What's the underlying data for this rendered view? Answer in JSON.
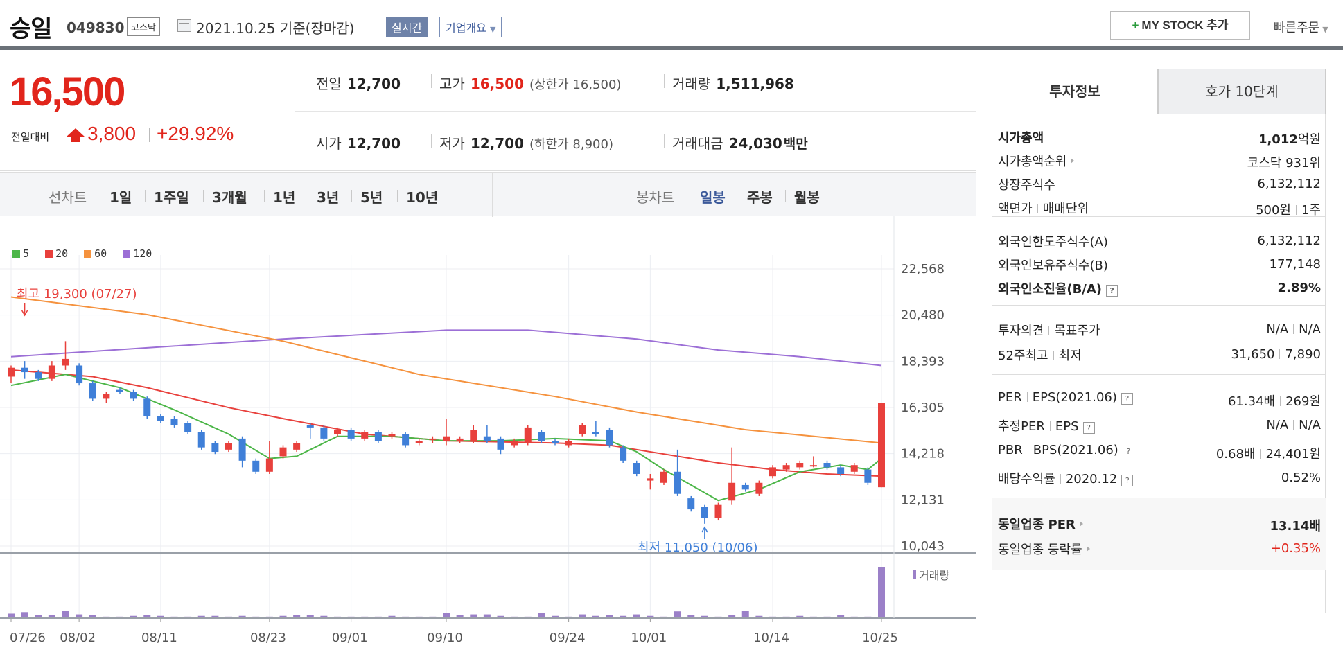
{
  "header": {
    "stock_name": "승일",
    "stock_code": "049830",
    "market": "코스닥",
    "date_text": "2021.10.25 기준(장마감)",
    "realtime_label": "실시간",
    "company_label": "기업개요",
    "mystock_label": "MY STOCK 추가",
    "quick_order_label": "빠른주문"
  },
  "price": {
    "current": "16,500",
    "compare_label": "전일대비",
    "diff": "3,800",
    "pct": "+29.92%",
    "color_up": "#e1251b"
  },
  "stats": {
    "prev_label": "전일",
    "prev": "12,700",
    "high_label": "고가",
    "high": "16,500",
    "upper_limit": "(상한가 16,500)",
    "volume_label": "거래량",
    "volume": "1,511,968",
    "open_label": "시가",
    "open": "12,700",
    "low_label": "저가",
    "low": "12,700",
    "lower_limit": "(하한가 8,900)",
    "amount_label": "거래대금",
    "amount": "24,030",
    "amount_unit": "백만"
  },
  "tabs": {
    "line_label": "선차트",
    "line_periods": [
      "1일",
      "1주일",
      "3개월",
      "1년",
      "3년",
      "5년",
      "10년"
    ],
    "candle_label": "봉차트",
    "candle_periods": [
      "일봉",
      "주봉",
      "월봉"
    ],
    "candle_selected": "일봉"
  },
  "chart_data": {
    "type": "candlestick",
    "legend": [
      {
        "name": "5",
        "color": "#4cb648"
      },
      {
        "name": "20",
        "color": "#e8403c"
      },
      {
        "name": "60",
        "color": "#f5923e"
      },
      {
        "name": "120",
        "color": "#9c6fd6"
      }
    ],
    "y_ticks": [
      "22,568",
      "20,480",
      "18,393",
      "16,305",
      "14,218",
      "12,131",
      "10,043"
    ],
    "ylim": [
      10043,
      22568
    ],
    "x_ticks": [
      "07/26",
      "08/02",
      "08/11",
      "08/23",
      "09/01",
      "09/10",
      "09/24",
      "10/01",
      "10/14",
      "10/25"
    ],
    "high_annotation": "최고 19,300 (07/27)",
    "low_annotation": "최저 11,050 (10/06)",
    "volume_label": "거래량",
    "candles": [
      [
        17700,
        18100,
        17400,
        18200
      ],
      [
        18100,
        17900,
        17600,
        18400
      ],
      [
        17900,
        17600,
        17500,
        18000
      ],
      [
        17600,
        18200,
        17500,
        18400
      ],
      [
        18200,
        18500,
        18000,
        19300
      ],
      [
        18200,
        17400,
        17300,
        18300
      ],
      [
        17400,
        16700,
        16600,
        17500
      ],
      [
        16700,
        16900,
        16500,
        17000
      ],
      [
        17100,
        17000,
        16900,
        17200
      ],
      [
        17000,
        16700,
        16600,
        17100
      ],
      [
        16700,
        15900,
        15800,
        16800
      ],
      [
        15900,
        15700,
        15600,
        16000
      ],
      [
        15800,
        15500,
        15400,
        15900
      ],
      [
        15600,
        15200,
        15100,
        15700
      ],
      [
        15200,
        14500,
        14400,
        15300
      ],
      [
        14700,
        14300,
        14200,
        14800
      ],
      [
        14400,
        14700,
        14300,
        14800
      ],
      [
        14900,
        13900,
        13600,
        15000
      ],
      [
        13900,
        13400,
        13300,
        14000
      ],
      [
        13400,
        14000,
        13300,
        14800
      ],
      [
        14100,
        14500,
        14000,
        14600
      ],
      [
        14400,
        14700,
        14300,
        14800
      ],
      [
        15500,
        15400,
        14900,
        15600
      ],
      [
        15400,
        14900,
        14800,
        15500
      ],
      [
        15100,
        15300,
        15000,
        15400
      ],
      [
        15300,
        14900,
        14800,
        15400
      ],
      [
        14900,
        15200,
        14800,
        15300
      ],
      [
        15200,
        14800,
        14700,
        15300
      ],
      [
        15000,
        15100,
        14900,
        15200
      ],
      [
        15100,
        14600,
        14500,
        15200
      ],
      [
        14700,
        14800,
        14600,
        14900
      ],
      [
        14900,
        14900,
        14700,
        15000
      ],
      [
        14800,
        15000,
        14600,
        15800
      ],
      [
        14800,
        14900,
        14700,
        15000
      ],
      [
        14800,
        15300,
        14700,
        15500
      ],
      [
        15000,
        14800,
        14700,
        15500
      ],
      [
        14900,
        14400,
        14200,
        15000
      ],
      [
        14600,
        14800,
        14500,
        14900
      ],
      [
        14700,
        15400,
        14600,
        15500
      ],
      [
        15200,
        14800,
        14700,
        15300
      ],
      [
        14800,
        14700,
        14600,
        14900
      ],
      [
        14600,
        14800,
        14500,
        14900
      ],
      [
        15100,
        15500,
        15000,
        15600
      ],
      [
        15200,
        15100,
        15000,
        15700
      ],
      [
        15300,
        14600,
        14500,
        15400
      ],
      [
        14500,
        13900,
        13800,
        14600
      ],
      [
        13800,
        13300,
        13200,
        13900
      ],
      [
        13000,
        13100,
        12600,
        13300
      ],
      [
        12900,
        13400,
        12800,
        13500
      ],
      [
        13400,
        12400,
        12300,
        14400
      ],
      [
        12200,
        11700,
        11600,
        12300
      ],
      [
        11800,
        11300,
        11050,
        11900
      ],
      [
        11300,
        11900,
        11200,
        12000
      ],
      [
        12100,
        12900,
        11900,
        14500
      ],
      [
        12800,
        12600,
        12500,
        12900
      ],
      [
        12400,
        12900,
        12300,
        13000
      ],
      [
        13200,
        13600,
        13100,
        13700
      ],
      [
        13500,
        13700,
        13400,
        13800
      ],
      [
        13600,
        13800,
        13500,
        13900
      ],
      [
        13700,
        13700,
        13600,
        14100
      ],
      [
        13800,
        13600,
        13500,
        13900
      ],
      [
        13600,
        13300,
        13200,
        13700
      ],
      [
        13400,
        13700,
        13300,
        13800
      ],
      [
        13500,
        12900,
        12800,
        13600
      ],
      [
        12700,
        16500,
        12700,
        16500
      ]
    ],
    "ma5": [
      [
        0,
        17300
      ],
      [
        4,
        17800
      ],
      [
        8,
        17200
      ],
      [
        12,
        16200
      ],
      [
        16,
        15100
      ],
      [
        19,
        14000
      ],
      [
        21,
        14100
      ],
      [
        24,
        15000
      ],
      [
        28,
        15000
      ],
      [
        32,
        14800
      ],
      [
        36,
        14800
      ],
      [
        40,
        14900
      ],
      [
        44,
        14800
      ],
      [
        46,
        14300
      ],
      [
        48,
        13500
      ],
      [
        50,
        12800
      ],
      [
        52,
        12100
      ],
      [
        55,
        12600
      ],
      [
        58,
        13400
      ],
      [
        61,
        13700
      ],
      [
        63,
        13500
      ],
      [
        64,
        14000
      ]
    ],
    "ma20": [
      [
        0,
        18000
      ],
      [
        6,
        17700
      ],
      [
        10,
        17200
      ],
      [
        16,
        16300
      ],
      [
        20,
        15800
      ],
      [
        26,
        15100
      ],
      [
        32,
        14800
      ],
      [
        40,
        14700
      ],
      [
        44,
        14600
      ],
      [
        48,
        14200
      ],
      [
        52,
        13800
      ],
      [
        56,
        13500
      ],
      [
        60,
        13300
      ],
      [
        64,
        13200
      ]
    ],
    "ma60": [
      [
        0,
        21300
      ],
      [
        10,
        20500
      ],
      [
        20,
        19300
      ],
      [
        30,
        17800
      ],
      [
        40,
        16800
      ],
      [
        46,
        16100
      ],
      [
        54,
        15300
      ],
      [
        64,
        14700
      ]
    ],
    "ma120": [
      [
        0,
        18600
      ],
      [
        10,
        19000
      ],
      [
        20,
        19400
      ],
      [
        32,
        19800
      ],
      [
        38,
        19800
      ],
      [
        46,
        19400
      ],
      [
        52,
        18900
      ],
      [
        58,
        18600
      ],
      [
        64,
        18200
      ]
    ],
    "volumes": [
      30,
      40,
      20,
      20,
      50,
      25,
      20,
      10,
      10,
      15,
      20,
      15,
      10,
      10,
      15,
      15,
      10,
      15,
      10,
      10,
      15,
      20,
      20,
      15,
      10,
      10,
      10,
      10,
      15,
      10,
      10,
      10,
      35,
      20,
      25,
      25,
      15,
      10,
      10,
      35,
      15,
      10,
      25,
      15,
      20,
      15,
      25,
      15,
      10,
      45,
      20,
      15,
      10,
      20,
      50,
      15,
      10,
      10,
      15,
      10,
      10,
      20,
      10,
      10,
      340
    ]
  },
  "side": {
    "tab_info": "투자정보",
    "tab_quote": "호가 10단계",
    "market_cap_label": "시가총액",
    "market_cap_value": "1,012",
    "market_cap_unit": "억원",
    "market_cap_rank_label": "시가총액순위",
    "market_cap_rank_value": "코스닥 931위",
    "shares_label": "상장주식수",
    "shares_value": "6,132,112",
    "par_label": "액면가",
    "lot_label": "매매단위",
    "par_value": "500원",
    "lot_value": "1주",
    "foreign_limit_label": "외국인한도주식수(A)",
    "foreign_limit_value": "6,132,112",
    "foreign_hold_label": "외국인보유주식수(B)",
    "foreign_hold_value": "177,148",
    "foreign_ratio_label": "외국인소진율(B/A)",
    "foreign_ratio_value": "2.89%",
    "opinion_label": "투자의견",
    "target_label": "목표주가",
    "opinion_value": "N/A",
    "target_value": "N/A",
    "w52_high_label": "52주최고",
    "w52_low_label": "최저",
    "w52_high_value": "31,650",
    "w52_low_value": "7,890",
    "per_label": "PER",
    "eps_label": "EPS(2021.06)",
    "per_value": "61.34배",
    "eps_value": "269원",
    "est_per_label": "추정PER",
    "est_eps_label": "EPS",
    "est_per_value": "N/A",
    "est_eps_value": "N/A",
    "pbr_label": "PBR",
    "bps_label": "BPS(2021.06)",
    "pbr_value": "0.68배",
    "bps_value": "24,401원",
    "div_label": "배당수익률",
    "div_period": "2020.12",
    "div_value": "0.52%",
    "ind_per_label": "동일업종 PER",
    "ind_per_value": "13.14배",
    "ind_change_label": "동일업종 등락률",
    "ind_change_value": "+0.35%"
  }
}
